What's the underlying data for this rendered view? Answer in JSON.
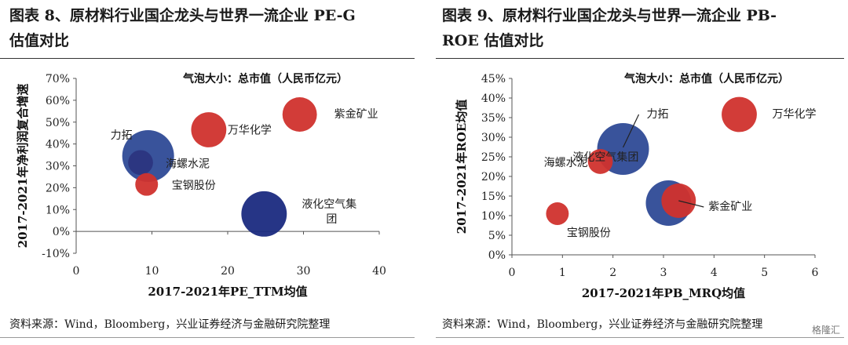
{
  "left": {
    "title_line1": "图表 8、原材料行业国企龙头与世界一流企业 PE-G",
    "title_line2": "估值对比",
    "source": "资料来源：Wind，Bloomberg，兴业证券经济与金融研究院整理",
    "chart_data": {
      "type": "scatter",
      "subtype": "bubble",
      "annotation": "气泡大小：总市值（人民币亿元）",
      "xlabel": "2017-2021年PE_TTM均值",
      "ylabel": "2017-2021年净利润复合增速",
      "xlim": [
        0,
        40
      ],
      "ylim": [
        -10,
        70
      ],
      "x_ticks": [
        "0",
        "10",
        "20",
        "30",
        "40"
      ],
      "y_ticks": [
        "-10%",
        "0%",
        "10%",
        "20%",
        "30%",
        "40%",
        "50%",
        "60%",
        "70%"
      ],
      "x_tick_values": [
        0,
        10,
        20,
        30,
        40
      ],
      "y_tick_values": [
        -10,
        0,
        10,
        20,
        30,
        40,
        50,
        60,
        70
      ],
      "grid": false,
      "points": [
        {
          "label": "力拓",
          "x": 9.5,
          "y": 34.5,
          "size": 5.2,
          "color": "#2e4a96"
        },
        {
          "label": "海螺水泥",
          "x": 8.5,
          "y": 31.5,
          "size": 1.2,
          "color": "#2b357f"
        },
        {
          "label": "宝钢股份",
          "x": 9.3,
          "y": 21.5,
          "size": 1.0,
          "color": "#d0312d"
        },
        {
          "label": "万华化学",
          "x": 17.5,
          "y": 46.5,
          "size": 2.4,
          "color": "#d0312d"
        },
        {
          "label": "紫金矿业",
          "x": 29.5,
          "y": 53.5,
          "size": 2.3,
          "color": "#d0312d"
        },
        {
          "label": "液化空气集团",
          "x": 24.8,
          "y": 8.0,
          "size": 4.0,
          "color": "#1a2a80"
        }
      ]
    }
  },
  "right": {
    "title_line1": "图表 9、原材料行业国企龙头与世界一流企业 PB-",
    "title_line2": "ROE 估值对比",
    "source": "资料来源：Wind，Bloomberg，兴业证券经济与金融研究院整理",
    "watermark": "格隆汇",
    "chart_data": {
      "type": "scatter",
      "subtype": "bubble",
      "annotation": "气泡大小：总市值（人民币亿元）",
      "xlabel": "2017-2021年PB_MRQ均值",
      "ylabel": "2017-2021年ROE均值",
      "xlim": [
        0,
        6
      ],
      "ylim": [
        0,
        45
      ],
      "x_ticks": [
        "0",
        "1",
        "2",
        "3",
        "4",
        "5",
        "6"
      ],
      "y_ticks": [
        "0%",
        "5%",
        "10%",
        "15%",
        "20%",
        "25%",
        "30%",
        "35%",
        "40%",
        "45%"
      ],
      "x_tick_values": [
        0,
        1,
        2,
        3,
        4,
        5,
        6
      ],
      "y_tick_values": [
        0,
        5,
        10,
        15,
        20,
        25,
        30,
        35,
        40,
        45
      ],
      "grid": false,
      "points": [
        {
          "label": "力拓",
          "x": 2.2,
          "y": 27.0,
          "size": 5.2,
          "color": "#2e4a96"
        },
        {
          "label": "海螺水泥",
          "x": 1.75,
          "y": 23.8,
          "size": 1.2,
          "color": "#d0312d"
        },
        {
          "label": "宝钢股份",
          "x": 0.9,
          "y": 10.5,
          "size": 1.0,
          "color": "#d0312d"
        },
        {
          "label": "万华化学",
          "x": 4.5,
          "y": 35.8,
          "size": 2.4,
          "color": "#d0312d"
        },
        {
          "label": "紫金矿业",
          "x": 3.3,
          "y": 13.8,
          "size": 2.3,
          "color": "#d0312d"
        },
        {
          "label": "液化空气集团",
          "x": 3.1,
          "y": 13.2,
          "size": 4.0,
          "color": "#2e4a96"
        }
      ]
    }
  }
}
